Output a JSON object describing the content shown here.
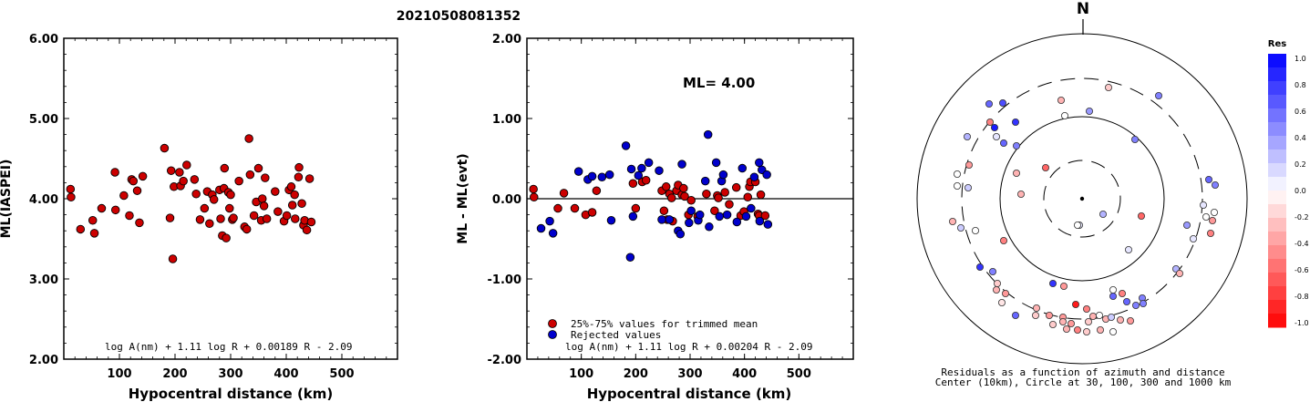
{
  "event_id": "20210508081352",
  "charts": [
    {
      "type": "scatter",
      "ylabel": "ML(IASPEI)",
      "xlabel": "Hypocentral distance (km)",
      "xlim": [
        0,
        600
      ],
      "ylim": [
        2.0,
        6.0
      ],
      "xticks": [
        "100",
        "200",
        "300",
        "400",
        "500"
      ],
      "yticks": [
        "2.00",
        "3.00",
        "4.00",
        "5.00",
        "6.00"
      ],
      "formula": "log A(nm) + 1.11 log R + 0.00189 R - 2.09",
      "series": [
        {
          "color": "#cc0000",
          "points": [
            [
              12,
              4.12
            ],
            [
              13,
              4.02
            ],
            [
              30,
              3.62
            ],
            [
              52,
              3.73
            ],
            [
              55,
              3.57
            ],
            [
              68,
              3.88
            ],
            [
              92,
              4.33
            ],
            [
              93,
              3.86
            ],
            [
              108,
              4.04
            ],
            [
              118,
              3.79
            ],
            [
              122,
              4.24
            ],
            [
              125,
              4.22
            ],
            [
              132,
              4.1
            ],
            [
              136,
              3.7
            ],
            [
              142,
              4.28
            ],
            [
              181,
              4.63
            ],
            [
              191,
              3.76
            ],
            [
              193,
              4.35
            ],
            [
              196,
              3.25
            ],
            [
              198,
              4.15
            ],
            [
              208,
              4.33
            ],
            [
              210,
              4.16
            ],
            [
              215,
              4.22
            ],
            [
              221,
              4.42
            ],
            [
              235,
              4.24
            ],
            [
              238,
              4.06
            ],
            [
              245,
              3.74
            ],
            [
              253,
              3.88
            ],
            [
              258,
              4.09
            ],
            [
              262,
              3.69
            ],
            [
              267,
              4.05
            ],
            [
              270,
              3.99
            ],
            [
              280,
              4.11
            ],
            [
              282,
              3.75
            ],
            [
              285,
              3.54
            ],
            [
              288,
              4.13
            ],
            [
              289,
              4.38
            ],
            [
              292,
              3.51
            ],
            [
              296,
              4.08
            ],
            [
              298,
              3.88
            ],
            [
              300,
              4.05
            ],
            [
              303,
              3.74
            ],
            [
              305,
              3.76
            ],
            [
              315,
              4.22
            ],
            [
              325,
              3.65
            ],
            [
              329,
              3.62
            ],
            [
              333,
              4.75
            ],
            [
              335,
              4.3
            ],
            [
              342,
              3.79
            ],
            [
              346,
              3.96
            ],
            [
              350,
              4.38
            ],
            [
              355,
              3.73
            ],
            [
              357,
              4.0
            ],
            [
              360,
              3.91
            ],
            [
              362,
              4.26
            ],
            [
              365,
              3.75
            ],
            [
              380,
              4.09
            ],
            [
              385,
              3.84
            ],
            [
              396,
              3.72
            ],
            [
              401,
              3.79
            ],
            [
              405,
              4.11
            ],
            [
              409,
              4.15
            ],
            [
              411,
              3.92
            ],
            [
              415,
              4.05
            ],
            [
              416,
              3.75
            ],
            [
              422,
              4.27
            ],
            [
              423,
              4.39
            ],
            [
              428,
              3.94
            ],
            [
              431,
              3.67
            ],
            [
              433,
              3.73
            ],
            [
              437,
              3.61
            ],
            [
              442,
              4.25
            ],
            [
              445,
              3.71
            ]
          ]
        }
      ]
    },
    {
      "type": "scatter",
      "ylabel": "ML - ML(evt)",
      "xlabel": "Hypocentral distance (km)",
      "xlim": [
        0,
        600
      ],
      "ylim": [
        -2.0,
        2.0
      ],
      "xticks": [
        "100",
        "200",
        "300",
        "400",
        "500"
      ],
      "yticks": [
        "-2.00",
        "-1.00",
        "0.00",
        "1.00",
        "2.00"
      ],
      "reference_line": 0.0,
      "formula": "log A(nm) + 1.11 log R + 0.00204 R - 2.09",
      "ml_text": "ML= 4.00",
      "legend": [
        {
          "label": "25%-75% values for trimmed mean",
          "color": "#cc0000"
        },
        {
          "label": "Rejected values",
          "color": "#0000cc"
        }
      ],
      "series": [
        {
          "color": "#cc0000",
          "points": [
            [
              12,
              0.12
            ],
            [
              13,
              0.02
            ],
            [
              57,
              -0.12
            ],
            [
              68,
              0.07
            ],
            [
              88,
              -0.12
            ],
            [
              108,
              -0.2
            ],
            [
              120,
              -0.17
            ],
            [
              128,
              0.1
            ],
            [
              195,
              0.19
            ],
            [
              200,
              -0.12
            ],
            [
              212,
              0.21
            ],
            [
              219,
              0.23
            ],
            [
              248,
              0.1
            ],
            [
              252,
              -0.15
            ],
            [
              256,
              0.15
            ],
            [
              258,
              -0.26
            ],
            [
              262,
              0.06
            ],
            [
              266,
              0.01
            ],
            [
              268,
              -0.28
            ],
            [
              275,
              0.1
            ],
            [
              278,
              0.17
            ],
            [
              285,
              0.05
            ],
            [
              288,
              0.13
            ],
            [
              290,
              0.03
            ],
            [
              297,
              -0.2
            ],
            [
              302,
              -0.02
            ],
            [
              314,
              -0.22
            ],
            [
              330,
              0.06
            ],
            [
              345,
              -0.15
            ],
            [
              350,
              0.04
            ],
            [
              352,
              0.01
            ],
            [
              364,
              0.08
            ],
            [
              372,
              -0.07
            ],
            [
              385,
              0.14
            ],
            [
              393,
              -0.21
            ],
            [
              399,
              -0.16
            ],
            [
              406,
              0.02
            ],
            [
              409,
              0.15
            ],
            [
              411,
              0.21
            ],
            [
              420,
              0.21
            ],
            [
              425,
              -0.19
            ],
            [
              427,
              -0.21
            ],
            [
              430,
              0.05
            ],
            [
              438,
              -0.21
            ]
          ]
        },
        {
          "color": "#0000cc",
          "points": [
            [
              26,
              -0.37
            ],
            [
              42,
              -0.28
            ],
            [
              48,
              -0.43
            ],
            [
              95,
              0.34
            ],
            [
              112,
              0.24
            ],
            [
              120,
              0.28
            ],
            [
              138,
              0.27
            ],
            [
              152,
              0.3
            ],
            [
              155,
              -0.27
            ],
            [
              182,
              0.66
            ],
            [
              190,
              -0.73
            ],
            [
              192,
              0.37
            ],
            [
              195,
              -0.22
            ],
            [
              205,
              0.29
            ],
            [
              211,
              0.38
            ],
            [
              224,
              0.45
            ],
            [
              243,
              0.35
            ],
            [
              248,
              -0.26
            ],
            [
              262,
              -0.26
            ],
            [
              278,
              -0.4
            ],
            [
              282,
              -0.44
            ],
            [
              285,
              0.43
            ],
            [
              298,
              -0.3
            ],
            [
              302,
              -0.15
            ],
            [
              315,
              -0.27
            ],
            [
              318,
              -0.2
            ],
            [
              328,
              0.22
            ],
            [
              333,
              0.8
            ],
            [
              335,
              -0.35
            ],
            [
              348,
              0.45
            ],
            [
              354,
              -0.22
            ],
            [
              358,
              0.22
            ],
            [
              361,
              0.3
            ],
            [
              368,
              -0.2
            ],
            [
              386,
              -0.29
            ],
            [
              396,
              0.38
            ],
            [
              403,
              -0.22
            ],
            [
              412,
              -0.12
            ],
            [
              418,
              0.27
            ],
            [
              427,
              0.45
            ],
            [
              428,
              -0.28
            ],
            [
              432,
              0.36
            ],
            [
              441,
              0.3
            ],
            [
              443,
              -0.32
            ]
          ]
        }
      ]
    }
  ],
  "polar": {
    "north_label": "N",
    "caption_line1": "Residuals as a function of azimuth and distance",
    "caption_line2": "Center (10km), Circle at 30, 100, 300 and 1000 km",
    "points": [
      [
        1164,
        110,
        -0.3
      ],
      [
        1168,
        127,
        0.0
      ],
      [
        1216,
        96,
        -0.2
      ],
      [
        1271,
        105,
        0.5
      ],
      [
        1195,
        122,
        0.4
      ],
      [
        1085,
        114,
        0.6
      ],
      [
        1100,
        113,
        0.7
      ],
      [
        1114,
        134,
        0.8
      ],
      [
        1086,
        134,
        -0.5
      ],
      [
        1091,
        140,
        0.9
      ],
      [
        1061,
        150,
        0.3
      ],
      [
        1093,
        150,
        0.1
      ],
      [
        1101,
        157,
        0.6
      ],
      [
        1115,
        160,
        0.5
      ],
      [
        1245,
        153,
        0.5
      ],
      [
        1063,
        181,
        -0.4
      ],
      [
        1050,
        191,
        0.0
      ],
      [
        1147,
        184,
        -0.6
      ],
      [
        1050,
        204,
        0.0
      ],
      [
        1115,
        190,
        -0.3
      ],
      [
        1062,
        206,
        0.2
      ],
      [
        1120,
        213,
        -0.3
      ],
      [
        1326,
        197,
        0.6
      ],
      [
        1333,
        203,
        0.5
      ],
      [
        1320,
        225,
        0.1
      ],
      [
        1252,
        237,
        -0.6
      ],
      [
        1210,
        235,
        0.3
      ],
      [
        1184,
        247,
        0.1
      ],
      [
        1045,
        243,
        -0.3
      ],
      [
        1054,
        250,
        0.2
      ],
      [
        1070,
        253,
        0.0
      ],
      [
        1302,
        247,
        0.4
      ],
      [
        1323,
        238,
        0.0
      ],
      [
        1332,
        233,
        0.0
      ],
      [
        1330,
        242,
        -0.4
      ],
      [
        1328,
        256,
        -0.5
      ],
      [
        1309,
        262,
        0.1
      ],
      [
        1101,
        264,
        -0.5
      ],
      [
        1238,
        274,
        0.1
      ],
      [
        1075,
        293,
        0.8
      ],
      [
        1089,
        298,
        0.5
      ],
      [
        1290,
        295,
        0.3
      ],
      [
        1294,
        300,
        -0.3
      ],
      [
        1094,
        311,
        -0.2
      ],
      [
        1093,
        318,
        -0.3
      ],
      [
        1103,
        322,
        -0.4
      ],
      [
        1155,
        311,
        0.8
      ],
      [
        1167,
        314,
        -0.4
      ],
      [
        1221,
        318,
        0.0
      ],
      [
        1221,
        325,
        0.6
      ],
      [
        1231,
        322,
        -0.5
      ],
      [
        1236,
        331,
        0.6
      ],
      [
        1253,
        327,
        0.5
      ],
      [
        1254,
        333,
        0.5
      ],
      [
        1246,
        335,
        0.5
      ],
      [
        1099,
        332,
        -0.1
      ],
      [
        1114,
        346,
        0.6
      ],
      [
        1137,
        338,
        -0.3
      ],
      [
        1136,
        346,
        -0.2
      ],
      [
        1151,
        346,
        -0.4
      ],
      [
        1180,
        334,
        -0.9
      ],
      [
        1192,
        339,
        -0.5
      ],
      [
        1199,
        347,
        -0.3
      ],
      [
        1206,
        346,
        0.0
      ],
      [
        1213,
        350,
        -0.3
      ],
      [
        1219,
        348,
        0.2
      ],
      [
        1229,
        351,
        -0.3
      ],
      [
        1240,
        352,
        -0.4
      ],
      [
        1166,
        348,
        -0.4
      ],
      [
        1166,
        353,
        -0.3
      ],
      [
        1155,
        356,
        -0.2
      ],
      [
        1175,
        355,
        -0.4
      ],
      [
        1194,
        353,
        -0.2
      ],
      [
        1192,
        364,
        -0.2
      ],
      [
        1182,
        362,
        -0.5
      ],
      [
        1170,
        361,
        -0.3
      ],
      [
        1207,
        362,
        -0.3
      ],
      [
        1221,
        364,
        0.0
      ],
      [
        1182,
        247,
        0.0
      ]
    ]
  },
  "colorbar": {
    "title": "Res",
    "labels": [
      "1.0",
      "0.8",
      "0.6",
      "0.4",
      "0.2",
      "0.0",
      "-0.2",
      "-0.4",
      "-0.6",
      "-0.8",
      "-1.0"
    ]
  }
}
